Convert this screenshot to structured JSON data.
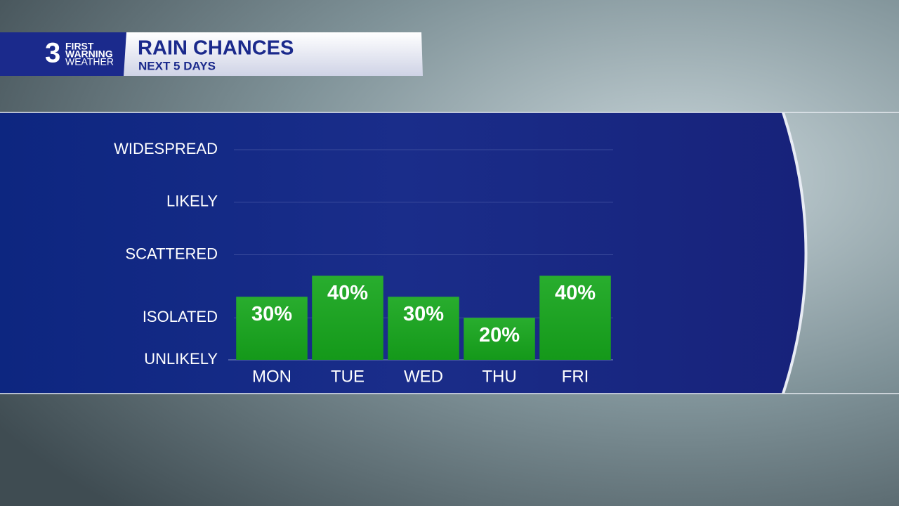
{
  "logo": {
    "number": "3",
    "line1": "FIRST",
    "line2": "WARNING",
    "line3": "WEATHER"
  },
  "chart_data": {
    "type": "bar",
    "title": "RAIN CHANCES",
    "subtitle": "NEXT 5 DAYS",
    "categories": [
      "MON",
      "TUE",
      "WED",
      "THU",
      "FRI"
    ],
    "values": [
      30,
      40,
      30,
      20,
      40
    ],
    "value_labels": [
      "30%",
      "40%",
      "30%",
      "20%",
      "40%"
    ],
    "color": "#16a61c",
    "ylim": [
      0,
      100
    ],
    "yticks": [
      {
        "value": 0,
        "label": "UNLIKELY"
      },
      {
        "value": 20,
        "label": "ISOLATED"
      },
      {
        "value": 50,
        "label": "SCATTERED"
      },
      {
        "value": 75,
        "label": "LIKELY"
      },
      {
        "value": 100,
        "label": "WIDESPREAD"
      }
    ],
    "grid": true
  }
}
